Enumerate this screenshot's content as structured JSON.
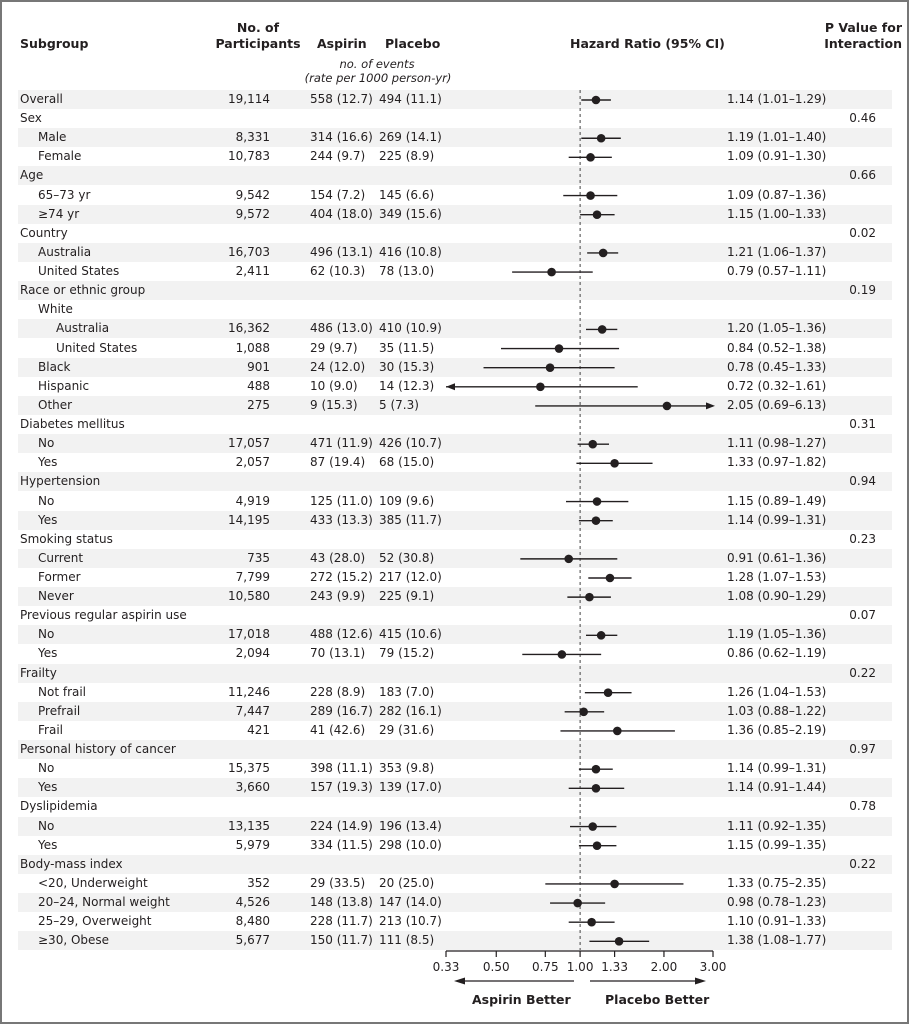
{
  "headers": {
    "subgroup": "Subgroup",
    "participants_1": "No. of",
    "participants_2": "Participants",
    "aspirin": "Aspirin",
    "placebo": "Placebo",
    "events_1": "no. of events",
    "events_2": "(rate per 1000 person-yr)",
    "hr": "Hazard Ratio (95% CI)",
    "p_1": "P Value for",
    "p_2": "Interaction"
  },
  "chart_data": {
    "type": "forest",
    "xscale": "log",
    "xlim": [
      0.33,
      3.0
    ],
    "reference": 1.0,
    "xticks": [
      "0.33",
      "0.50",
      "0.75",
      "1.00",
      "1.33",
      "2.00",
      "3.00"
    ],
    "left_label": "Aspirin Better",
    "right_label": "Placebo Better",
    "rows": [
      {
        "label": "Overall",
        "indent": 0,
        "n": "19,114",
        "aspirin": "558 (12.7)",
        "placebo": "494 (11.1)",
        "hr": 1.14,
        "lo": 1.01,
        "hi": 1.29,
        "ci": "1.14 (1.01–1.29)",
        "p": ""
      },
      {
        "label": "Sex",
        "indent": 0,
        "n": "",
        "aspirin": "",
        "placebo": "",
        "hr": null,
        "ci": "",
        "p": "0.46"
      },
      {
        "label": "Male",
        "indent": 1,
        "n": "8,331",
        "aspirin": "314 (16.6)",
        "placebo": "269 (14.1)",
        "hr": 1.19,
        "lo": 1.01,
        "hi": 1.4,
        "ci": "1.19 (1.01–1.40)",
        "p": ""
      },
      {
        "label": "Female",
        "indent": 1,
        "n": "10,783",
        "aspirin": "244 (9.7)",
        "placebo": "225 (8.9)",
        "hr": 1.09,
        "lo": 0.91,
        "hi": 1.3,
        "ci": "1.09 (0.91–1.30)",
        "p": ""
      },
      {
        "label": "Age",
        "indent": 0,
        "n": "",
        "aspirin": "",
        "placebo": "",
        "hr": null,
        "ci": "",
        "p": "0.66"
      },
      {
        "label": "65–73 yr",
        "indent": 1,
        "n": "9,542",
        "aspirin": "154 (7.2)",
        "placebo": "145 (6.6)",
        "hr": 1.09,
        "lo": 0.87,
        "hi": 1.36,
        "ci": "1.09 (0.87–1.36)",
        "p": ""
      },
      {
        "label": "≥74 yr",
        "indent": 1,
        "n": "9,572",
        "aspirin": "404 (18.0)",
        "placebo": "349 (15.6)",
        "hr": 1.15,
        "lo": 1.0,
        "hi": 1.33,
        "ci": "1.15 (1.00–1.33)",
        "p": ""
      },
      {
        "label": "Country",
        "indent": 0,
        "n": "",
        "aspirin": "",
        "placebo": "",
        "hr": null,
        "ci": "",
        "p": "0.02"
      },
      {
        "label": "Australia",
        "indent": 1,
        "n": "16,703",
        "aspirin": "496 (13.1)",
        "placebo": "416 (10.8)",
        "hr": 1.21,
        "lo": 1.06,
        "hi": 1.37,
        "ci": "1.21 (1.06–1.37)",
        "p": ""
      },
      {
        "label": "United States",
        "indent": 1,
        "n": "2,411",
        "aspirin": "62 (10.3)",
        "placebo": "78 (13.0)",
        "hr": 0.79,
        "lo": 0.57,
        "hi": 1.11,
        "ci": "0.79 (0.57–1.11)",
        "p": ""
      },
      {
        "label": "Race or ethnic group",
        "indent": 0,
        "n": "",
        "aspirin": "",
        "placebo": "",
        "hr": null,
        "ci": "",
        "p": "0.19"
      },
      {
        "label": "White",
        "indent": 1,
        "n": "",
        "aspirin": "",
        "placebo": "",
        "hr": null,
        "ci": "",
        "p": ""
      },
      {
        "label": "Australia",
        "indent": 2,
        "n": "16,362",
        "aspirin": "486 (13.0)",
        "placebo": "410 (10.9)",
        "hr": 1.2,
        "lo": 1.05,
        "hi": 1.36,
        "ci": "1.20 (1.05–1.36)",
        "p": ""
      },
      {
        "label": "United States",
        "indent": 2,
        "n": "1,088",
        "aspirin": "29 (9.7)",
        "placebo": "35 (11.5)",
        "hr": 0.84,
        "lo": 0.52,
        "hi": 1.38,
        "ci": "0.84 (0.52–1.38)",
        "p": ""
      },
      {
        "label": "Black",
        "indent": 1,
        "n": "901",
        "aspirin": "24 (12.0)",
        "placebo": "30 (15.3)",
        "hr": 0.78,
        "lo": 0.45,
        "hi": 1.33,
        "ci": "0.78 (0.45–1.33)",
        "p": ""
      },
      {
        "label": "Hispanic",
        "indent": 1,
        "n": "488",
        "aspirin": "10 (9.0)",
        "placebo": "14 (12.3)",
        "hr": 0.72,
        "lo": 0.32,
        "hi": 1.61,
        "ci": "0.72 (0.32–1.61)",
        "p": ""
      },
      {
        "label": "Other",
        "indent": 1,
        "n": "275",
        "aspirin": "9 (15.3)",
        "placebo": "5 (7.3)",
        "hr": 2.05,
        "lo": 0.69,
        "hi": 6.13,
        "ci": "2.05 (0.69–6.13)",
        "p": ""
      },
      {
        "label": "Diabetes mellitus",
        "indent": 0,
        "n": "",
        "aspirin": "",
        "placebo": "",
        "hr": null,
        "ci": "",
        "p": "0.31"
      },
      {
        "label": "No",
        "indent": 1,
        "n": "17,057",
        "aspirin": "471 (11.9)",
        "placebo": "426 (10.7)",
        "hr": 1.11,
        "lo": 0.98,
        "hi": 1.27,
        "ci": "1.11 (0.98–1.27)",
        "p": ""
      },
      {
        "label": "Yes",
        "indent": 1,
        "n": "2,057",
        "aspirin": "87 (19.4)",
        "placebo": "68 (15.0)",
        "hr": 1.33,
        "lo": 0.97,
        "hi": 1.82,
        "ci": "1.33 (0.97–1.82)",
        "p": ""
      },
      {
        "label": "Hypertension",
        "indent": 0,
        "n": "",
        "aspirin": "",
        "placebo": "",
        "hr": null,
        "ci": "",
        "p": "0.94"
      },
      {
        "label": "No",
        "indent": 1,
        "n": "4,919",
        "aspirin": "125 (11.0)",
        "placebo": "109 (9.6)",
        "hr": 1.15,
        "lo": 0.89,
        "hi": 1.49,
        "ci": "1.15 (0.89–1.49)",
        "p": ""
      },
      {
        "label": "Yes",
        "indent": 1,
        "n": "14,195",
        "aspirin": "433 (13.3)",
        "placebo": "385 (11.7)",
        "hr": 1.14,
        "lo": 0.99,
        "hi": 1.31,
        "ci": "1.14 (0.99–1.31)",
        "p": ""
      },
      {
        "label": "Smoking status",
        "indent": 0,
        "n": "",
        "aspirin": "",
        "placebo": "",
        "hr": null,
        "ci": "",
        "p": "0.23"
      },
      {
        "label": "Current",
        "indent": 1,
        "n": "735",
        "aspirin": "43 (28.0)",
        "placebo": "52 (30.8)",
        "hr": 0.91,
        "lo": 0.61,
        "hi": 1.36,
        "ci": "0.91 (0.61–1.36)",
        "p": ""
      },
      {
        "label": "Former",
        "indent": 1,
        "n": "7,799",
        "aspirin": "272 (15.2)",
        "placebo": "217 (12.0)",
        "hr": 1.28,
        "lo": 1.07,
        "hi": 1.53,
        "ci": "1.28 (1.07–1.53)",
        "p": ""
      },
      {
        "label": "Never",
        "indent": 1,
        "n": "10,580",
        "aspirin": "243 (9.9)",
        "placebo": "225 (9.1)",
        "hr": 1.08,
        "lo": 0.9,
        "hi": 1.29,
        "ci": "1.08 (0.90–1.29)",
        "p": ""
      },
      {
        "label": "Previous regular aspirin use",
        "indent": 0,
        "n": "",
        "aspirin": "",
        "placebo": "",
        "hr": null,
        "ci": "",
        "p": "0.07"
      },
      {
        "label": "No",
        "indent": 1,
        "n": "17,018",
        "aspirin": "488 (12.6)",
        "placebo": "415 (10.6)",
        "hr": 1.19,
        "lo": 1.05,
        "hi": 1.36,
        "ci": "1.19 (1.05–1.36)",
        "p": ""
      },
      {
        "label": "Yes",
        "indent": 1,
        "n": "2,094",
        "aspirin": "70 (13.1)",
        "placebo": "79 (15.2)",
        "hr": 0.86,
        "lo": 0.62,
        "hi": 1.19,
        "ci": "0.86 (0.62–1.19)",
        "p": ""
      },
      {
        "label": "Frailty",
        "indent": 0,
        "n": "",
        "aspirin": "",
        "placebo": "",
        "hr": null,
        "ci": "",
        "p": "0.22"
      },
      {
        "label": "Not frail",
        "indent": 1,
        "n": "11,246",
        "aspirin": "228 (8.9)",
        "placebo": "183 (7.0)",
        "hr": 1.26,
        "lo": 1.04,
        "hi": 1.53,
        "ci": "1.26 (1.04–1.53)",
        "p": ""
      },
      {
        "label": "Prefrail",
        "indent": 1,
        "n": "7,447",
        "aspirin": "289 (16.7)",
        "placebo": "282 (16.1)",
        "hr": 1.03,
        "lo": 0.88,
        "hi": 1.22,
        "ci": "1.03 (0.88–1.22)",
        "p": ""
      },
      {
        "label": "Frail",
        "indent": 1,
        "n": "421",
        "aspirin": "41 (42.6)",
        "placebo": "29 (31.6)",
        "hr": 1.36,
        "lo": 0.85,
        "hi": 2.19,
        "ci": "1.36 (0.85–2.19)",
        "p": ""
      },
      {
        "label": "Personal history of cancer",
        "indent": 0,
        "n": "",
        "aspirin": "",
        "placebo": "",
        "hr": null,
        "ci": "",
        "p": "0.97"
      },
      {
        "label": "No",
        "indent": 1,
        "n": "15,375",
        "aspirin": "398 (11.1)",
        "placebo": "353 (9.8)",
        "hr": 1.14,
        "lo": 0.99,
        "hi": 1.31,
        "ci": "1.14 (0.99–1.31)",
        "p": ""
      },
      {
        "label": "Yes",
        "indent": 1,
        "n": "3,660",
        "aspirin": "157 (19.3)",
        "placebo": "139 (17.0)",
        "hr": 1.14,
        "lo": 0.91,
        "hi": 1.44,
        "ci": "1.14 (0.91–1.44)",
        "p": ""
      },
      {
        "label": "Dyslipidemia",
        "indent": 0,
        "n": "",
        "aspirin": "",
        "placebo": "",
        "hr": null,
        "ci": "",
        "p": "0.78"
      },
      {
        "label": "No",
        "indent": 1,
        "n": "13,135",
        "aspirin": "224 (14.9)",
        "placebo": "196 (13.4)",
        "hr": 1.11,
        "lo": 0.92,
        "hi": 1.35,
        "ci": "1.11 (0.92–1.35)",
        "p": ""
      },
      {
        "label": "Yes",
        "indent": 1,
        "n": "5,979",
        "aspirin": "334 (11.5)",
        "placebo": "298 (10.0)",
        "hr": 1.15,
        "lo": 0.99,
        "hi": 1.35,
        "ci": "1.15 (0.99–1.35)",
        "p": ""
      },
      {
        "label": "Body-mass index",
        "indent": 0,
        "n": "",
        "aspirin": "",
        "placebo": "",
        "hr": null,
        "ci": "",
        "p": "0.22"
      },
      {
        "label": "<20, Underweight",
        "indent": 1,
        "n": "352",
        "aspirin": "29 (33.5)",
        "placebo": "20 (25.0)",
        "hr": 1.33,
        "lo": 0.75,
        "hi": 2.35,
        "ci": "1.33 (0.75–2.35)",
        "p": ""
      },
      {
        "label": "20–24, Normal weight",
        "indent": 1,
        "n": "4,526",
        "aspirin": "148 (13.8)",
        "placebo": "147 (14.0)",
        "hr": 0.98,
        "lo": 0.78,
        "hi": 1.23,
        "ci": "0.98 (0.78–1.23)",
        "p": ""
      },
      {
        "label": "25–29, Overweight",
        "indent": 1,
        "n": "8,480",
        "aspirin": "228 (11.7)",
        "placebo": "213 (10.7)",
        "hr": 1.1,
        "lo": 0.91,
        "hi": 1.33,
        "ci": "1.10 (0.91–1.33)",
        "p": ""
      },
      {
        "label": "≥30, Obese",
        "indent": 1,
        "n": "5,677",
        "aspirin": "150 (11.7)",
        "placebo": "111 (8.5)",
        "hr": 1.38,
        "lo": 1.08,
        "hi": 1.77,
        "ci": "1.38 (1.08–1.77)",
        "p": ""
      }
    ]
  }
}
